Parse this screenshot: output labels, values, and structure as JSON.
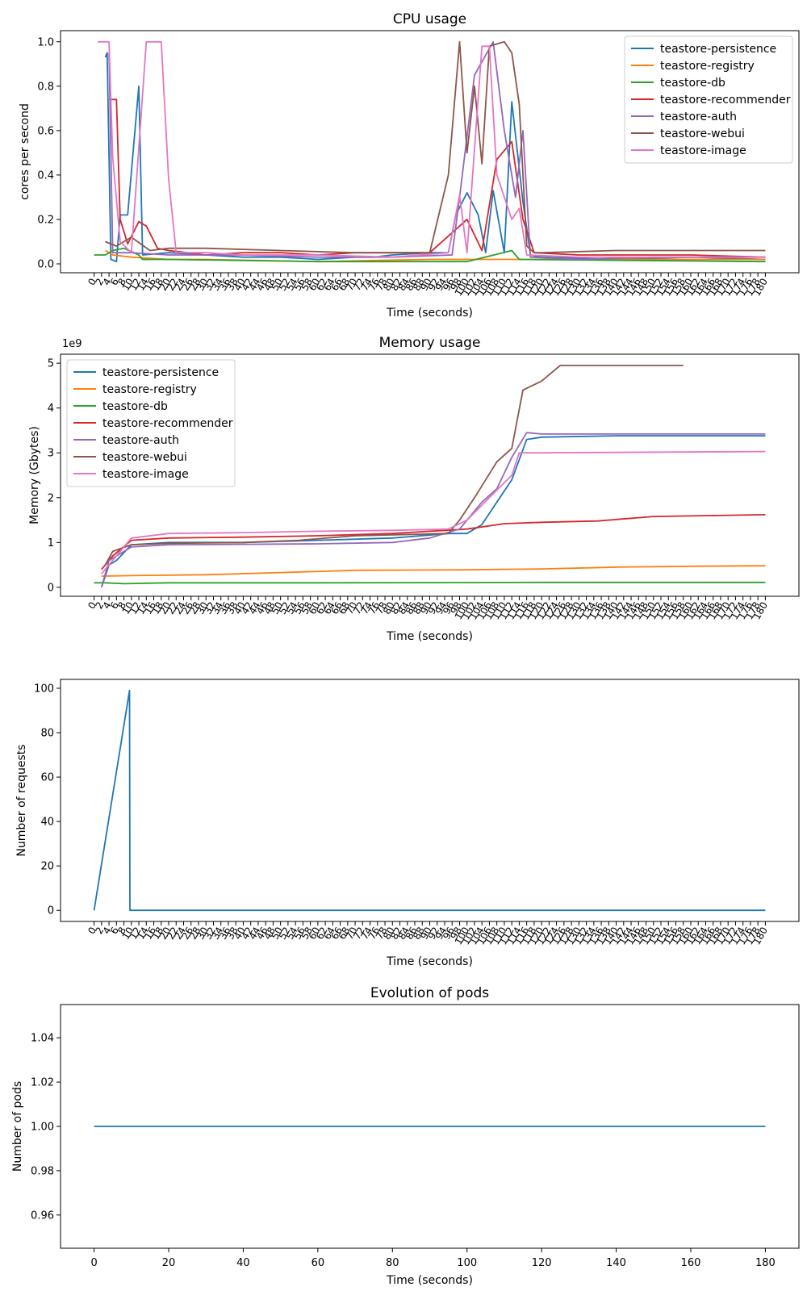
{
  "chart_data": [
    {
      "type": "line",
      "title": "CPU usage",
      "xlabel": "Time (seconds)",
      "ylabel": "cores per second",
      "ylim": [
        -0.04,
        1.05
      ],
      "yticks": [
        "0.0",
        "0.2",
        "0.4",
        "0.6",
        "0.8",
        "1.0"
      ],
      "legend_loc": "top-right",
      "series": [
        {
          "name": "teastore-persistence",
          "color": "#1f77b4",
          "points": [
            [
              3,
              0.93
            ],
            [
              3.5,
              0.95
            ],
            [
              4.5,
              0.02
            ],
            [
              6,
              0.01
            ],
            [
              7,
              0.22
            ],
            [
              9,
              0.22
            ],
            [
              12,
              0.8
            ],
            [
              13,
              0.04
            ],
            [
              20,
              0.05
            ],
            [
              30,
              0.04
            ],
            [
              40,
              0.03
            ],
            [
              50,
              0.03
            ],
            [
              60,
              0.02
            ],
            [
              70,
              0.03
            ],
            [
              75,
              0.03
            ],
            [
              80,
              0.04
            ],
            [
              90,
              0.05
            ],
            [
              95,
              0.05
            ],
            [
              97,
              0.22
            ],
            [
              100,
              0.32
            ],
            [
              103,
              0.22
            ],
            [
              105,
              0.05
            ],
            [
              107,
              0.33
            ],
            [
              110,
              0.05
            ],
            [
              112,
              0.73
            ],
            [
              115,
              0.28
            ],
            [
              117,
              0.04
            ],
            [
              120,
              0.03
            ],
            [
              140,
              0.02
            ],
            [
              160,
              0.03
            ],
            [
              180,
              0.02
            ]
          ]
        },
        {
          "name": "teastore-registry",
          "color": "#ff7f0e",
          "points": [
            [
              3,
              0.06
            ],
            [
              5,
              0.04
            ],
            [
              10,
              0.03
            ],
            [
              20,
              0.02
            ],
            [
              30,
              0.02
            ],
            [
              60,
              0.01
            ],
            [
              90,
              0.02
            ],
            [
              120,
              0.02
            ],
            [
              150,
              0.02
            ],
            [
              180,
              0.02
            ]
          ]
        },
        {
          "name": "teastore-db",
          "color": "#2ca02c",
          "points": [
            [
              0,
              0.04
            ],
            [
              3,
              0.04
            ],
            [
              5,
              0.06
            ],
            [
              8,
              0.07
            ],
            [
              12,
              0.04
            ],
            [
              13,
              0.02
            ],
            [
              20,
              0.02
            ],
            [
              60,
              0.01
            ],
            [
              90,
              0.01
            ],
            [
              100,
              0.01
            ],
            [
              112,
              0.06
            ],
            [
              114,
              0.02
            ],
            [
              180,
              0.01
            ]
          ]
        },
        {
          "name": "teastore-recommender",
          "color": "#d62728",
          "points": [
            [
              4,
              0.74
            ],
            [
              6,
              0.74
            ],
            [
              7,
              0.2
            ],
            [
              9,
              0.09
            ],
            [
              12,
              0.19
            ],
            [
              14,
              0.17
            ],
            [
              17,
              0.07
            ],
            [
              20,
              0.06
            ],
            [
              25,
              0.05
            ],
            [
              30,
              0.04
            ],
            [
              40,
              0.05
            ],
            [
              50,
              0.05
            ],
            [
              60,
              0.04
            ],
            [
              70,
              0.05
            ],
            [
              80,
              0.05
            ],
            [
              90,
              0.05
            ],
            [
              100,
              0.2
            ],
            [
              104,
              0.06
            ],
            [
              108,
              0.47
            ],
            [
              112,
              0.55
            ],
            [
              115,
              0.2
            ],
            [
              118,
              0.05
            ],
            [
              130,
              0.04
            ],
            [
              140,
              0.04
            ],
            [
              160,
              0.04
            ],
            [
              180,
              0.03
            ]
          ]
        },
        {
          "name": "teastore-auth",
          "color": "#9467bd",
          "points": [
            [
              4,
              0.95
            ],
            [
              5,
              0.05
            ],
            [
              10,
              0.05
            ],
            [
              20,
              0.04
            ],
            [
              40,
              0.04
            ],
            [
              60,
              0.03
            ],
            [
              80,
              0.03
            ],
            [
              96,
              0.04
            ],
            [
              98,
              0.3
            ],
            [
              102,
              0.85
            ],
            [
              107,
              1.0
            ],
            [
              110,
              0.6
            ],
            [
              113,
              0.3
            ],
            [
              115,
              0.6
            ],
            [
              117,
              0.03
            ],
            [
              130,
              0.02
            ],
            [
              150,
              0.03
            ],
            [
              180,
              0.03
            ]
          ]
        },
        {
          "name": "teastore-webui",
          "color": "#8c564b",
          "points": [
            [
              3,
              0.1
            ],
            [
              6,
              0.08
            ],
            [
              10,
              0.12
            ],
            [
              15,
              0.06
            ],
            [
              20,
              0.07
            ],
            [
              30,
              0.07
            ],
            [
              50,
              0.06
            ],
            [
              70,
              0.05
            ],
            [
              90,
              0.05
            ],
            [
              95,
              0.4
            ],
            [
              98,
              1.0
            ],
            [
              100,
              0.5
            ],
            [
              102,
              0.8
            ],
            [
              104,
              0.45
            ],
            [
              106,
              0.98
            ],
            [
              110,
              1.0
            ],
            [
              112,
              0.95
            ],
            [
              114,
              0.72
            ],
            [
              116,
              0.08
            ],
            [
              118,
              0.05
            ],
            [
              120,
              0.05
            ],
            [
              140,
              0.06
            ],
            [
              160,
              0.06
            ],
            [
              180,
              0.06
            ]
          ]
        },
        {
          "name": "teastore-image",
          "color": "#e377c2",
          "points": [
            [
              1,
              1.0
            ],
            [
              4,
              1.0
            ],
            [
              5,
              0.48
            ],
            [
              7,
              0.1
            ],
            [
              10,
              0.05
            ],
            [
              14,
              1.0
            ],
            [
              18,
              1.0
            ],
            [
              20,
              0.38
            ],
            [
              22,
              0.05
            ],
            [
              30,
              0.05
            ],
            [
              40,
              0.04
            ],
            [
              60,
              0.04
            ],
            [
              80,
              0.03
            ],
            [
              95,
              0.05
            ],
            [
              98,
              0.31
            ],
            [
              100,
              0.05
            ],
            [
              104,
              0.98
            ],
            [
              106,
              0.98
            ],
            [
              108,
              0.4
            ],
            [
              112,
              0.2
            ],
            [
              114,
              0.25
            ],
            [
              116,
              0.04
            ],
            [
              130,
              0.03
            ],
            [
              150,
              0.03
            ],
            [
              180,
              0.03
            ]
          ]
        }
      ]
    },
    {
      "type": "line",
      "title": "Memory usage",
      "xlabel": "Time (seconds)",
      "ylabel": "Memory (Gbytes)",
      "scale_label": "1e9",
      "ylim": [
        -0.2,
        5.2
      ],
      "yticks": [
        "0",
        "1",
        "2",
        "3",
        "4",
        "5"
      ],
      "legend_loc": "top-left",
      "series": [
        {
          "name": "teastore-persistence",
          "color": "#1f77b4",
          "points": [
            [
              2,
              0
            ],
            [
              4,
              0.5
            ],
            [
              6,
              0.6
            ],
            [
              10,
              0.95
            ],
            [
              20,
              1.0
            ],
            [
              40,
              1.0
            ],
            [
              60,
              1.05
            ],
            [
              80,
              1.1
            ],
            [
              95,
              1.2
            ],
            [
              100,
              1.2
            ],
            [
              104,
              1.4
            ],
            [
              108,
              1.9
            ],
            [
              112,
              2.4
            ],
            [
              116,
              3.3
            ],
            [
              120,
              3.35
            ],
            [
              140,
              3.38
            ],
            [
              180,
              3.38
            ]
          ]
        },
        {
          "name": "teastore-registry",
          "color": "#ff7f0e",
          "points": [
            [
              2,
              0.25
            ],
            [
              10,
              0.26
            ],
            [
              30,
              0.28
            ],
            [
              50,
              0.33
            ],
            [
              70,
              0.38
            ],
            [
              100,
              0.39
            ],
            [
              120,
              0.41
            ],
            [
              140,
              0.45
            ],
            [
              160,
              0.47
            ],
            [
              180,
              0.48
            ]
          ]
        },
        {
          "name": "teastore-db",
          "color": "#2ca02c",
          "points": [
            [
              0,
              0.1
            ],
            [
              3,
              0.1
            ],
            [
              8,
              0.08
            ],
            [
              20,
              0.1
            ],
            [
              60,
              0.1
            ],
            [
              120,
              0.11
            ],
            [
              180,
              0.11
            ]
          ]
        },
        {
          "name": "teastore-recommender",
          "color": "#d62728",
          "points": [
            [
              2,
              0.4
            ],
            [
              5,
              0.7
            ],
            [
              10,
              1.05
            ],
            [
              20,
              1.1
            ],
            [
              40,
              1.12
            ],
            [
              60,
              1.15
            ],
            [
              80,
              1.2
            ],
            [
              100,
              1.3
            ],
            [
              110,
              1.42
            ],
            [
              120,
              1.45
            ],
            [
              135,
              1.48
            ],
            [
              150,
              1.58
            ],
            [
              165,
              1.6
            ],
            [
              180,
              1.62
            ]
          ]
        },
        {
          "name": "teastore-auth",
          "color": "#9467bd",
          "points": [
            [
              2,
              0
            ],
            [
              4,
              0.6
            ],
            [
              10,
              0.9
            ],
            [
              20,
              0.95
            ],
            [
              40,
              0.96
            ],
            [
              60,
              0.97
            ],
            [
              80,
              1.0
            ],
            [
              90,
              1.1
            ],
            [
              98,
              1.3
            ],
            [
              104,
              1.9
            ],
            [
              108,
              2.2
            ],
            [
              112,
              2.9
            ],
            [
              116,
              3.45
            ],
            [
              120,
              3.42
            ],
            [
              180,
              3.42
            ]
          ]
        },
        {
          "name": "teastore-webui",
          "color": "#8c564b",
          "points": [
            [
              3,
              0.5
            ],
            [
              5,
              0.8
            ],
            [
              10,
              0.95
            ],
            [
              20,
              0.98
            ],
            [
              40,
              1.0
            ],
            [
              55,
              1.05
            ],
            [
              70,
              1.15
            ],
            [
              95,
              1.2
            ],
            [
              98,
              1.5
            ],
            [
              102,
              2.0
            ],
            [
              108,
              2.8
            ],
            [
              112,
              3.1
            ],
            [
              115,
              4.4
            ],
            [
              120,
              4.6
            ],
            [
              125,
              4.95
            ],
            [
              145,
              4.95
            ],
            [
              158,
              4.95
            ]
          ]
        },
        {
          "name": "teastore-image",
          "color": "#e377c2",
          "points": [
            [
              2,
              0.3
            ],
            [
              6,
              0.7
            ],
            [
              10,
              1.1
            ],
            [
              20,
              1.2
            ],
            [
              40,
              1.22
            ],
            [
              60,
              1.25
            ],
            [
              80,
              1.27
            ],
            [
              95,
              1.3
            ],
            [
              100,
              1.5
            ],
            [
              106,
              2.0
            ],
            [
              112,
              2.5
            ],
            [
              114,
              3.0
            ],
            [
              120,
              3.0
            ],
            [
              180,
              3.03
            ]
          ]
        }
      ]
    },
    {
      "type": "line",
      "title": "",
      "xlabel": "Time (seconds)",
      "ylabel": "Number of requests",
      "ylim": [
        -5,
        104
      ],
      "yticks": [
        "0",
        "20",
        "40",
        "60",
        "80",
        "100"
      ],
      "series": [
        {
          "color": "#1f77b4",
          "points": [
            [
              0,
              0
            ],
            [
              9.5,
              99
            ],
            [
              9.6,
              0
            ],
            [
              180,
              0
            ]
          ]
        }
      ]
    },
    {
      "type": "line",
      "title": "Evolution of pods",
      "xlabel": "Time (seconds)",
      "ylabel": "Number of pods",
      "xlim": [
        -9,
        189
      ],
      "ylim": [
        0.945,
        1.055
      ],
      "xticks": [
        "0",
        "20",
        "40",
        "60",
        "80",
        "100",
        "120",
        "140",
        "160",
        "180"
      ],
      "yticks": [
        "0.96",
        "0.98",
        "1.00",
        "1.02",
        "1.04"
      ],
      "series": [
        {
          "color": "#1f77b4",
          "points": [
            [
              0,
              1.0
            ],
            [
              180,
              1.0
            ]
          ]
        }
      ]
    }
  ]
}
